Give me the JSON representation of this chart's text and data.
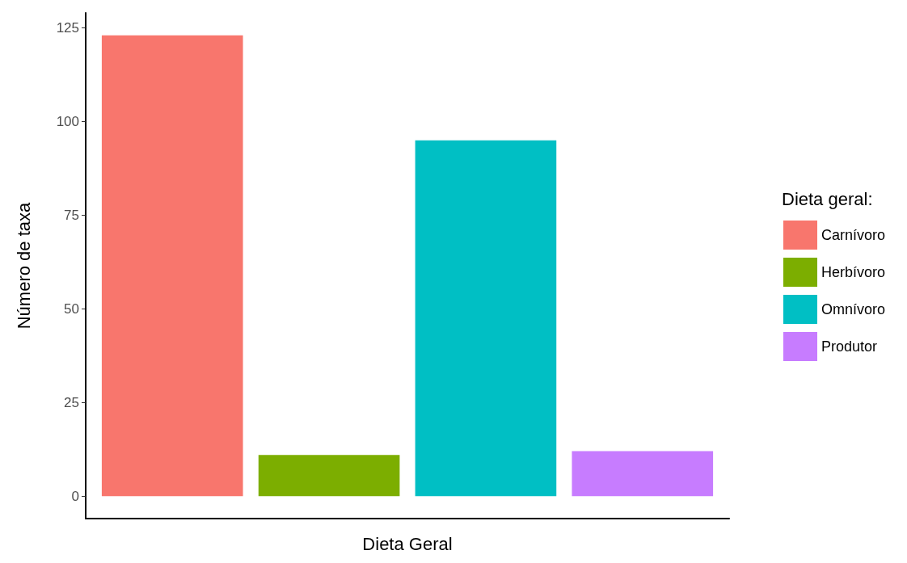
{
  "chart_data": {
    "type": "bar",
    "xlabel": "Dieta Geral",
    "ylabel": "Número de taxa",
    "legend_title": "Dieta geral:",
    "categories": [
      null
    ],
    "series": [
      {
        "name": "Carnívoro",
        "color": "#f8766d",
        "values": [
          123
        ]
      },
      {
        "name": "Herbívoro",
        "color": "#7cae00",
        "values": [
          11
        ]
      },
      {
        "name": "Omnívoro",
        "color": "#00bfc4",
        "values": [
          95
        ]
      },
      {
        "name": "Produtor",
        "color": "#c77cff",
        "values": [
          12
        ]
      }
    ],
    "ylim": [
      -6,
      129
    ],
    "yticks": [
      0,
      25,
      50,
      75,
      100,
      125
    ],
    "grid": false,
    "legend": "right",
    "tick_labels": "y"
  }
}
